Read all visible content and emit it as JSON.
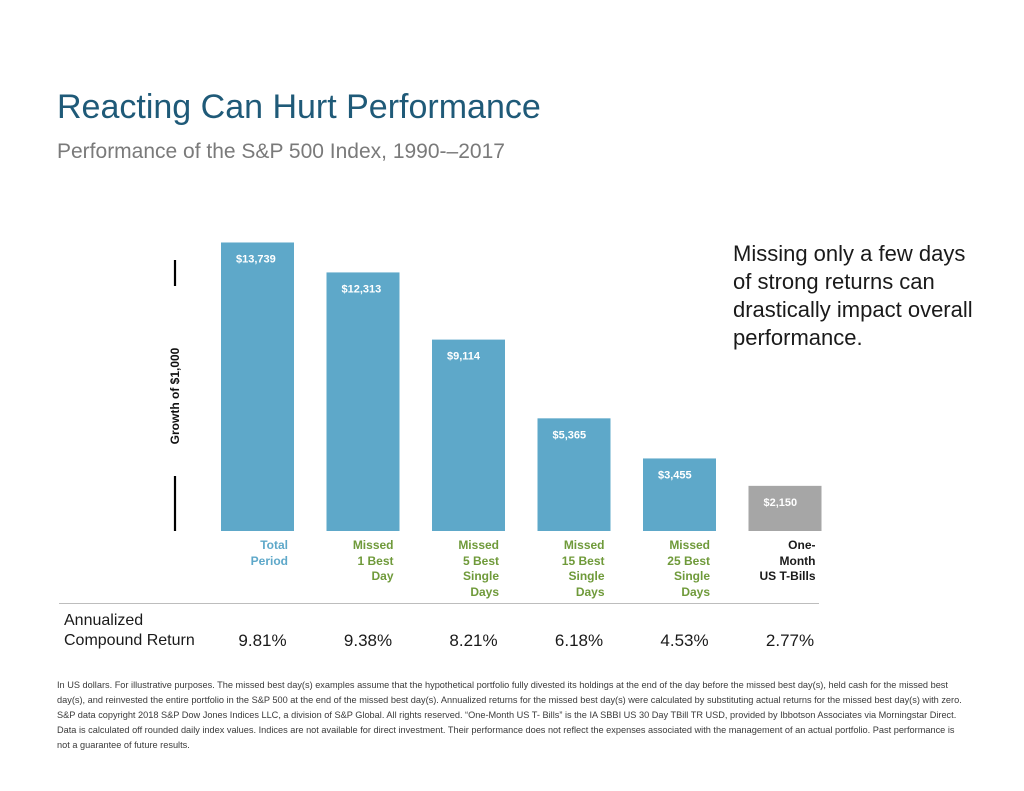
{
  "header": {
    "title": "Reacting Can Hurt Performance",
    "subtitle": "Performance of the S&P 500 Index, 1990-–2017"
  },
  "callout": "Missing only a few days of strong returns can drastically impact overall performance.",
  "colors": {
    "bar_blue": "#5ea8c9",
    "bar_gray": "#a6a6a6",
    "label_blue": "#5ea8c9",
    "label_green": "#6f9a3a",
    "label_black": "#1a1a1a",
    "title": "#1f5a78"
  },
  "chart_data": {
    "type": "bar",
    "ylabel": "Growth of $1,000",
    "xlabel": "",
    "ylim": [
      0,
      14000
    ],
    "categories": [
      {
        "lines": [
          "Total",
          "Period"
        ],
        "color": "blue"
      },
      {
        "lines": [
          "Missed",
          "1 Best",
          "Day"
        ],
        "color": "green"
      },
      {
        "lines": [
          "Missed",
          "5 Best",
          "Single",
          "Days"
        ],
        "color": "green"
      },
      {
        "lines": [
          "Missed",
          "15 Best",
          "Single",
          "Days"
        ],
        "color": "green"
      },
      {
        "lines": [
          "Missed",
          "25 Best",
          "Single",
          "Days"
        ],
        "color": "green"
      },
      {
        "lines": [
          "One-",
          "Month",
          "US T-Bills"
        ],
        "color": "black"
      }
    ],
    "values": [
      13739,
      12313,
      9114,
      5365,
      3455,
      2150
    ],
    "value_labels": [
      "$13,739",
      "$12,313",
      "$9,114",
      "$5,365",
      "$3,455",
      "$2,150"
    ],
    "bar_colors": [
      "blue",
      "blue",
      "blue",
      "blue",
      "blue",
      "gray"
    ]
  },
  "returns": {
    "header_line1": "Annualized",
    "header_line2": "Compound Return",
    "values": [
      "9.81%",
      "9.38%",
      "8.21%",
      "6.18%",
      "4.53%",
      "2.77%"
    ]
  },
  "footnote": {
    "p1": "In US dollars. For illustrative purposes. The missed best day(s) examples assume that the hypothetical portfolio fully divested its holdings at the end of the day before the missed best day(s), held cash for the missed best day(s), and reinvested the entire portfolio in the S&P 500 at the end of the missed best day(s). Annualized returns for the missed best day(s) were calculated by substituting actual returns for the missed best day(s) with zero.",
    "p2": "S&P data copyright 2018 S&P Dow Jones Indices LLC, a division of S&P Global. All rights reserved. “One-Month US T- Bills” is the IA SBBI US 30 Day TBill TR USD, provided by Ibbotson Associates via Morningstar Direct. Data is calculated off rounded daily index values. Indices are not available for direct investment. Their performance does not reflect the expenses associated with the management of an actual portfolio. Past performance is not a guarantee of future results."
  }
}
